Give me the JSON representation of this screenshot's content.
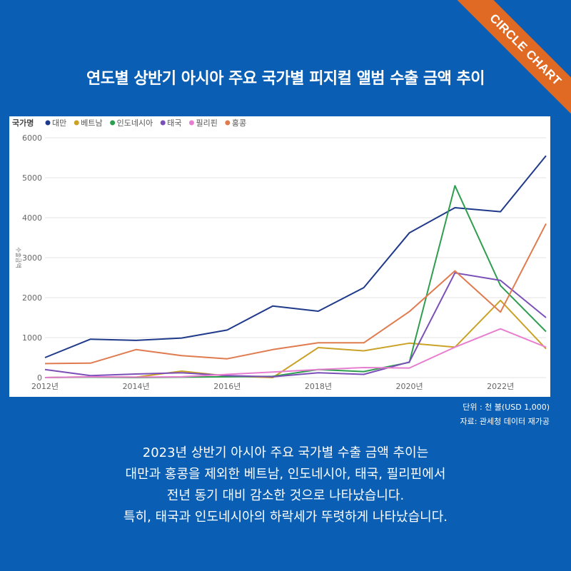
{
  "ribbon": {
    "text": "CIRCLE CHART",
    "color": "#e06a24"
  },
  "title": "연도별 상반기 아시아 주요 국가별 피지컬 앨범 수출 금액 추이",
  "source": {
    "unit": "단위 : 천 불(USD 1,000)",
    "credit": "자료: 관세청 데이터 재가공"
  },
  "summary": [
    "2023년 상반기 아시아 주요 국가별 수출 금액 추이는",
    "대만과 홍콩을 제외한 베트남, 인도네시아, 태국, 필리핀에서",
    "전년 동기 대비 감소한 것으로 나타났습니다.",
    "특히, 태국과 인도네시아의 하락세가 뚜렷하게 나타났습니다."
  ],
  "chart_data": {
    "type": "line",
    "legend_title": "국가명",
    "legend_position": "top-left",
    "ylabel": "수출금액",
    "xlabel": "",
    "x": [
      2012,
      2013,
      2014,
      2015,
      2016,
      2017,
      2018,
      2019,
      2020,
      2021,
      2022,
      2023
    ],
    "x_tick_labels": [
      "2012년",
      "2014년",
      "2016년",
      "2018년",
      "2020년",
      "2022년"
    ],
    "x_tick_values": [
      2012,
      2014,
      2016,
      2018,
      2020,
      2022
    ],
    "xlim": [
      2012,
      2023
    ],
    "ylim": [
      0,
      6000
    ],
    "y_ticks": [
      0,
      1000,
      2000,
      3000,
      4000,
      5000,
      6000
    ],
    "grid": true,
    "series": [
      {
        "name": "대만",
        "color": "#1f3a8a",
        "values": [
          500,
          960,
          930,
          990,
          1190,
          1790,
          1660,
          2250,
          3620,
          4250,
          4150,
          5550
        ]
      },
      {
        "name": "베트남",
        "color": "#c9a227",
        "values": [
          0,
          20,
          10,
          160,
          40,
          0,
          750,
          670,
          860,
          760,
          1930,
          720
        ]
      },
      {
        "name": "인도네시아",
        "color": "#2e9e4f",
        "values": [
          0,
          10,
          0,
          10,
          20,
          30,
          200,
          150,
          380,
          4800,
          2300,
          1150
        ]
      },
      {
        "name": "태국",
        "color": "#7b4fb8",
        "values": [
          200,
          50,
          90,
          120,
          50,
          20,
          120,
          80,
          390,
          2620,
          2430,
          1500
        ]
      },
      {
        "name": "필리핀",
        "color": "#e77fd0",
        "values": [
          0,
          20,
          10,
          20,
          80,
          140,
          200,
          250,
          240,
          760,
          1220,
          760
        ]
      },
      {
        "name": "홍콩",
        "color": "#e07b4f",
        "values": [
          350,
          360,
          700,
          550,
          470,
          700,
          870,
          870,
          1650,
          2670,
          1640,
          3850
        ]
      }
    ]
  }
}
